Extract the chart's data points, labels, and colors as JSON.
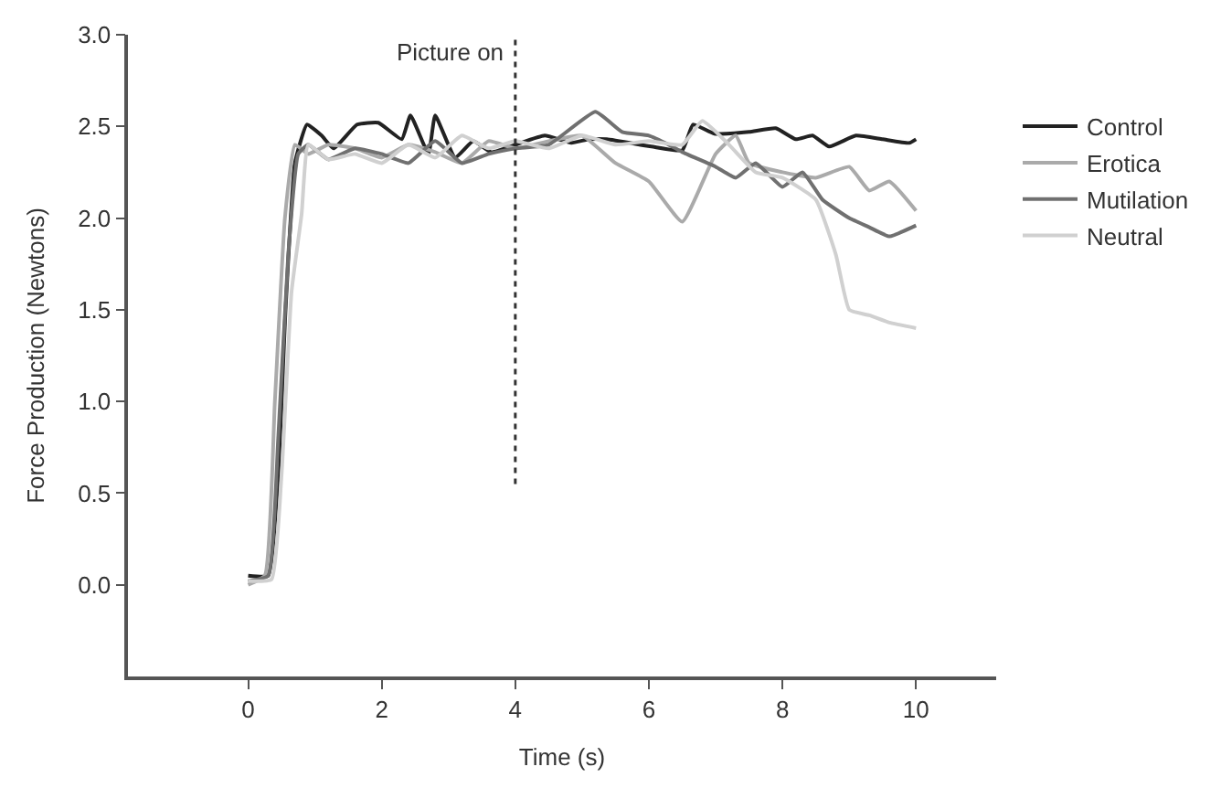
{
  "chart_data": {
    "type": "line",
    "xlabel": "Time (s)",
    "ylabel": "Force Production (Newtons)",
    "xlim": [
      -1.8,
      11.2
    ],
    "xticks": [
      0,
      2,
      4,
      6,
      8,
      10
    ],
    "ylim": [
      -0.5,
      3.0
    ],
    "yticks": [
      {
        "value": 0,
        "label": "0.0"
      },
      {
        "value": 0.5,
        "label": "0.5"
      },
      {
        "value": 1,
        "label": "1.0"
      },
      {
        "value": 1.5,
        "label": "1.5"
      },
      {
        "value": 2,
        "label": "2.0"
      },
      {
        "value": 2.5,
        "label": "2.5"
      },
      {
        "value": 3,
        "label": "3.0"
      }
    ],
    "legend": "right",
    "marker": "none",
    "line_style": "solid",
    "ref_lines": [
      {
        "axis": "x",
        "value": 4,
        "label": "Picture on",
        "line_style": "dotted",
        "color": "#333333"
      }
    ],
    "series": [
      {
        "name": "Control",
        "color": "#222222",
        "x": [
          0,
          0.3,
          0.45,
          0.56,
          0.7,
          0.88,
          1.1,
          1.28,
          1.63,
          1.95,
          2.3,
          2.43,
          2.7,
          2.8,
          3.1,
          3.37,
          3.64,
          4.0,
          4.44,
          4.84,
          5.1,
          5.37,
          6.04,
          6.5,
          6.66,
          6.98,
          7.5,
          7.9,
          8.2,
          8.45,
          8.7,
          9.1,
          9.5,
          9.9,
          10
        ],
        "values": [
          0.05,
          0.05,
          0.6,
          1.5,
          2.3,
          2.51,
          2.45,
          2.38,
          2.51,
          2.52,
          2.43,
          2.56,
          2.35,
          2.56,
          2.33,
          2.42,
          2.36,
          2.4,
          2.45,
          2.41,
          2.43,
          2.43,
          2.39,
          2.37,
          2.51,
          2.46,
          2.47,
          2.49,
          2.43,
          2.45,
          2.39,
          2.45,
          2.43,
          2.41,
          2.43
        ]
      },
      {
        "name": "Erotica",
        "color": "#aaaaaa",
        "x": [
          0,
          0.25,
          0.4,
          0.55,
          0.7,
          0.9,
          1.2,
          1.6,
          2.0,
          2.4,
          2.8,
          3.2,
          3.6,
          4.0,
          4.5,
          5.0,
          5.5,
          6.0,
          6.5,
          7.0,
          7.3,
          7.5,
          8.0,
          8.5,
          9.0,
          9.3,
          9.6,
          10
        ],
        "values": [
          0.0,
          0.05,
          1.0,
          2.0,
          2.4,
          2.35,
          2.4,
          2.38,
          2.33,
          2.4,
          2.36,
          2.3,
          2.42,
          2.38,
          2.42,
          2.45,
          2.3,
          2.2,
          1.98,
          2.35,
          2.45,
          2.3,
          2.25,
          2.22,
          2.28,
          2.15,
          2.2,
          2.04
        ]
      },
      {
        "name": "Mutilation",
        "color": "#707070",
        "x": [
          0,
          0.3,
          0.45,
          0.6,
          0.75,
          0.9,
          1.2,
          1.6,
          2.0,
          2.4,
          2.8,
          3.2,
          3.6,
          4.0,
          4.5,
          5.2,
          5.6,
          6.0,
          6.3,
          6.5,
          7.0,
          7.3,
          7.6,
          8.0,
          8.3,
          8.6,
          9.0,
          9.3,
          9.6,
          10
        ],
        "values": [
          0.02,
          0.05,
          0.8,
          1.8,
          2.35,
          2.4,
          2.32,
          2.38,
          2.35,
          2.3,
          2.42,
          2.3,
          2.35,
          2.38,
          2.4,
          2.58,
          2.47,
          2.45,
          2.4,
          2.36,
          2.28,
          2.22,
          2.3,
          2.17,
          2.25,
          2.1,
          2.0,
          1.95,
          1.9,
          1.96
        ]
      },
      {
        "name": "Neutral",
        "color": "#d0d0d0",
        "x": [
          0,
          0.35,
          0.5,
          0.65,
          0.8,
          0.9,
          1.2,
          1.6,
          2.0,
          2.4,
          2.8,
          3.2,
          3.6,
          4.0,
          4.5,
          5.0,
          5.5,
          6.0,
          6.5,
          6.8,
          7.2,
          7.6,
          8.0,
          8.5,
          8.8,
          9.0,
          9.3,
          9.6,
          10
        ],
        "values": [
          0.02,
          0.03,
          0.6,
          1.6,
          2.02,
          2.4,
          2.32,
          2.35,
          2.3,
          2.4,
          2.33,
          2.45,
          2.38,
          2.42,
          2.38,
          2.45,
          2.4,
          2.42,
          2.4,
          2.53,
          2.4,
          2.25,
          2.22,
          2.1,
          1.8,
          1.5,
          1.47,
          1.43,
          1.4
        ]
      }
    ]
  }
}
